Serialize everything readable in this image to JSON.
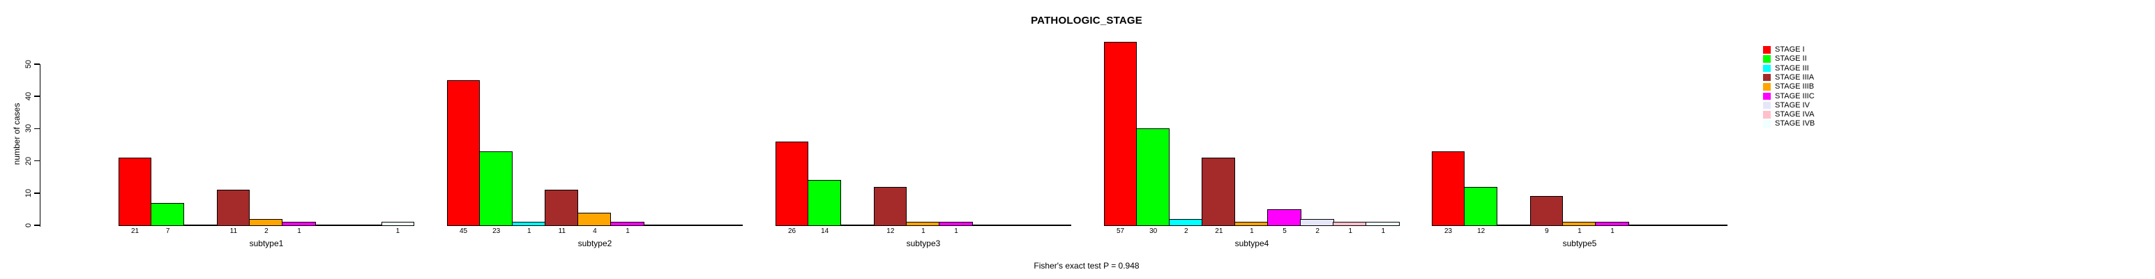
{
  "chart_data": {
    "type": "bar",
    "title": "PATHOLOGIC_STAGE",
    "ylabel": "number of cases",
    "footnote": "Fisher's exact test P = 0.948",
    "yticks": [
      0,
      10,
      20,
      30,
      40,
      50
    ],
    "ylim": [
      0,
      57
    ],
    "grid": false,
    "legend_position": "right",
    "bar_value_labels_shown": true,
    "categories": [
      "subtype1",
      "subtype2",
      "subtype3",
      "subtype4",
      "subtype5"
    ],
    "series": [
      {
        "name": "STAGE I",
        "color": "#FF0000",
        "values": [
          21,
          45,
          26,
          57,
          23
        ]
      },
      {
        "name": "STAGE II",
        "color": "#00FF00",
        "values": [
          7,
          23,
          14,
          30,
          12
        ]
      },
      {
        "name": "STAGE III",
        "color": "#00FFFF",
        "values": [
          0,
          1,
          0,
          2,
          0
        ]
      },
      {
        "name": "STAGE IIIA",
        "color": "#A52A2A",
        "values": [
          11,
          11,
          12,
          21,
          9
        ]
      },
      {
        "name": "STAGE IIIB",
        "color": "#FFA500",
        "values": [
          2,
          4,
          1,
          1,
          1
        ]
      },
      {
        "name": "STAGE IIIC",
        "color": "#FF00FF",
        "values": [
          1,
          1,
          1,
          5,
          1
        ]
      },
      {
        "name": "STAGE IV",
        "color": "#E6E6FA",
        "values": [
          0,
          0,
          0,
          2,
          0
        ]
      },
      {
        "name": "STAGE IVA",
        "color": "#FFC0CB",
        "values": [
          0,
          0,
          0,
          1,
          0
        ]
      },
      {
        "name": "STAGE IVB",
        "color": "#F0FFFF",
        "values": [
          1,
          0,
          0,
          1,
          0
        ]
      }
    ]
  }
}
